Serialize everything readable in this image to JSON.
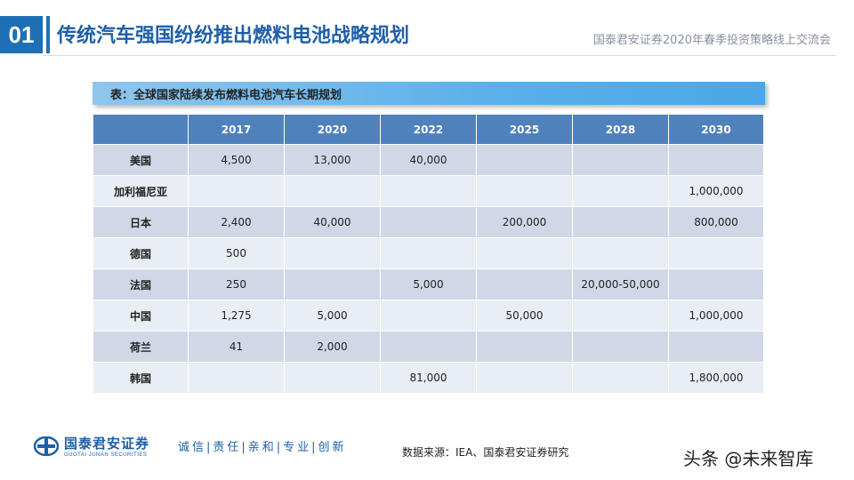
{
  "header": {
    "section_number": "01",
    "title": "传统汽车强国纷纷推出燃料电池战略规划",
    "subtitle": "国泰君安证券2020年春季投资策略线上交流会"
  },
  "table": {
    "caption": "表：全球国家陆续发布燃料电池汽车长期规划",
    "columns": [
      "",
      "2017",
      "2020",
      "2022",
      "2025",
      "2028",
      "2030"
    ],
    "rows": [
      [
        "美国",
        "4,500",
        "13,000",
        "40,000",
        "",
        "",
        ""
      ],
      [
        "加利福尼亚",
        "",
        "",
        "",
        "",
        "",
        "1,000,000"
      ],
      [
        "日本",
        "2,400",
        "40,000",
        "",
        "200,000",
        "",
        "800,000"
      ],
      [
        "德国",
        "500",
        "",
        "",
        "",
        "",
        ""
      ],
      [
        "法国",
        "250",
        "",
        "5,000",
        "",
        "20,000-50,000",
        ""
      ],
      [
        "中国",
        "1,275",
        "5,000",
        "",
        "50,000",
        "",
        "1,000,000"
      ],
      [
        "荷兰",
        "41",
        "2,000",
        "",
        "",
        "",
        ""
      ],
      [
        "韩国",
        "",
        "",
        "81,000",
        "",
        "",
        "1,800,000"
      ]
    ]
  },
  "footer": {
    "logo_cn": "国泰君安证券",
    "logo_en": "GUOTAI JUNAN SECURITIES",
    "slogan": "诚信|责任|亲和|专业|创新",
    "source": "数据来源：IEA、国泰君安证券研究",
    "watermark": "头条 @未来智库"
  },
  "colors": {
    "brand_blue": "#1f6fb5",
    "table_header": "#4f81bd",
    "row_odd": "#d0d8e8",
    "row_even": "#e9edf4"
  }
}
